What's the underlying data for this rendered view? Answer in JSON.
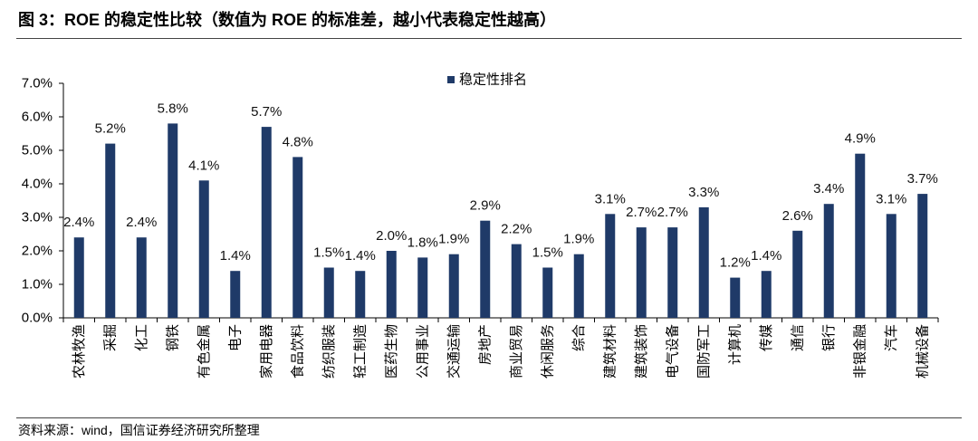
{
  "figure": {
    "title": "图 3：ROE 的稳定性比较（数值为 ROE 的标准差，越小代表稳定性越高）",
    "source": "资料来源：wind，国信证券经济研究所整理"
  },
  "chart_data": {
    "type": "bar",
    "ylim": [
      0,
      7
    ],
    "y_ticks": [
      {
        "value": 0,
        "label": "0.0%"
      },
      {
        "value": 1,
        "label": "1.0%"
      },
      {
        "value": 2,
        "label": "2.0%"
      },
      {
        "value": 3,
        "label": "3.0%"
      },
      {
        "value": 4,
        "label": "4.0%"
      },
      {
        "value": 5,
        "label": "5.0%"
      },
      {
        "value": 6,
        "label": "6.0%"
      },
      {
        "value": 7,
        "label": "7.0%"
      }
    ],
    "grid": false,
    "legend_position": "top-center",
    "categories": [
      "农林牧渔",
      "采掘",
      "化工",
      "钢铁",
      "有色金属",
      "电子",
      "家用电器",
      "食品饮料",
      "纺织服装",
      "轻工制造",
      "医药生物",
      "公用事业",
      "交通运输",
      "房地产",
      "商业贸易",
      "休闲服务",
      "综合",
      "建筑材料",
      "建筑装饰",
      "电气设备",
      "国防军工",
      "计算机",
      "传媒",
      "通信",
      "银行",
      "非银金融",
      "汽车",
      "机械设备"
    ],
    "series": [
      {
        "name": "稳定性排名",
        "color": "#1F3A68",
        "values": [
          2.4,
          5.2,
          2.4,
          5.8,
          4.1,
          1.4,
          5.7,
          4.8,
          1.5,
          1.4,
          2.0,
          1.8,
          1.9,
          2.9,
          2.2,
          1.5,
          1.9,
          3.1,
          2.7,
          2.7,
          3.3,
          1.2,
          1.4,
          2.6,
          3.4,
          4.9,
          3.1,
          3.7
        ],
        "data_labels": [
          "2.4%",
          "5.2%",
          "2.4%",
          "5.8%",
          "4.1%",
          "1.4%",
          "5.7%",
          "4.8%",
          "1.5%",
          "1.4%",
          "2.0%",
          "1.8%",
          "1.9%",
          "2.9%",
          "2.2%",
          "1.5%",
          "1.9%",
          "3.1%",
          "2.7%",
          "2.7%",
          "3.3%",
          "1.2%",
          "1.4%",
          "2.6%",
          "3.4%",
          "4.9%",
          "3.1%",
          "3.7%"
        ]
      }
    ]
  }
}
